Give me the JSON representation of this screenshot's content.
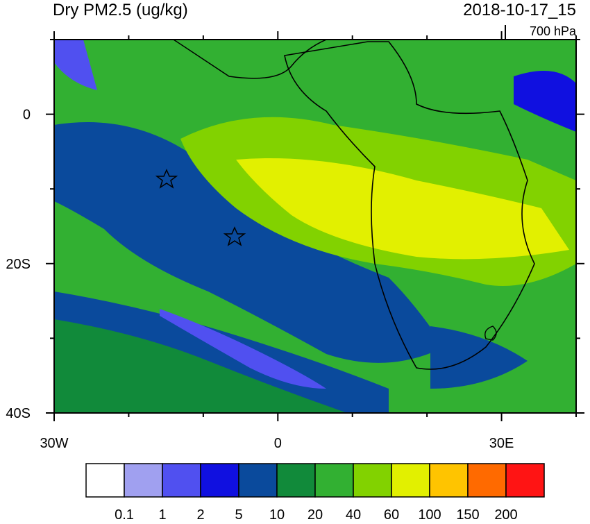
{
  "header": {
    "title": "Dry PM2.5 (ug/kg)",
    "time": "2018-10-17_15",
    "level": "700 hPa"
  },
  "map": {
    "lonlim": [
      -30,
      40
    ],
    "latlim": [
      -40,
      10
    ],
    "lonticks": [
      {
        "value": -30,
        "label": "30W"
      },
      0,
      {
        "value": 30,
        "label": "30E"
      }
    ],
    "latticks": [
      0,
      {
        "value": -20,
        "label": "20S"
      },
      {
        "value": -40,
        "label": "40S"
      }
    ],
    "lon_minor_ticks": [
      -20,
      -10,
      10,
      20,
      40
    ],
    "lat_minor_ticks": [
      10,
      -10,
      -30
    ]
  },
  "colorbar": {
    "colors": [
      "#ffffff",
      "#a0a0f0",
      "#5050f0",
      "#1010e0",
      "#0a4a9c",
      "#118a3a",
      "#32b032",
      "#82d200",
      "#e2f000",
      "#ffc400",
      "#ff6a00",
      "#ff1414"
    ],
    "labels": [
      0.1,
      1,
      2,
      5,
      10,
      20,
      40,
      60,
      100,
      150,
      200
    ]
  }
}
